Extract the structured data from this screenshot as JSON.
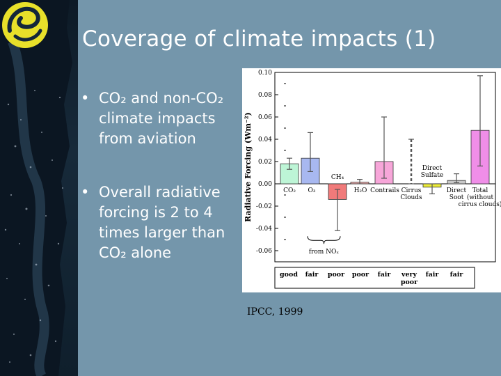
{
  "slide": {
    "title": "Coverage of climate impacts (1)",
    "bullets": [
      {
        "marker": "•",
        "text": "CO₂ and non-CO₂ climate impacts from aviation"
      },
      {
        "marker": "•",
        "text": "Overall radiative forcing is 2 to 4 times larger than CO₂ alone"
      }
    ],
    "source": "IPCC, 1999"
  },
  "colors": {
    "background": "#7496ab",
    "title": "#ffffff",
    "logo_yellow": "#e8e02a",
    "strip_dark": "#13263a"
  },
  "icons": {
    "logo": "yellow-swirl-logo-icon"
  },
  "chart_data": {
    "type": "bar",
    "ylabel": "Radiative Forcing (Wm⁻²)",
    "ylim": [
      -0.07,
      0.1
    ],
    "yticks": [
      "0.10",
      "0.08",
      "0.06",
      "0.04",
      "0.02",
      "0.00",
      "-0.02",
      "-0.04",
      "-0.06"
    ],
    "ytick_values": [
      0.1,
      0.08,
      0.06,
      0.04,
      0.02,
      0.0,
      -0.02,
      -0.04,
      -0.06
    ],
    "bars": [
      {
        "label": "CO₂",
        "value": 0.018,
        "err_low": 0.013,
        "err_high": 0.023,
        "color": "#bdf5d6",
        "style": "solid"
      },
      {
        "label": "O₃",
        "value": 0.023,
        "err_low": 0.011,
        "err_high": 0.046,
        "color": "#a8b8f0",
        "style": "solid"
      },
      {
        "label": "CH₄",
        "value": -0.014,
        "err_low": -0.042,
        "err_high": -0.005,
        "color": "#f07a7a",
        "style": "solid"
      },
      {
        "label": "H₂O",
        "value": 0.0015,
        "err_low": 0.0,
        "err_high": 0.004,
        "color": "#f0b0b0",
        "style": "solid"
      },
      {
        "label": "Contrails",
        "value": 0.02,
        "err_low": 0.005,
        "err_high": 0.06,
        "color": "#f7a6d9",
        "style": "solid"
      },
      {
        "label": "Cirrus Clouds",
        "value": null,
        "err_low": 0.0,
        "err_high": 0.04,
        "color": "#555555",
        "style": "dashed"
      },
      {
        "label": "Direct Sulfate",
        "value": -0.003,
        "err_low": -0.009,
        "err_high": 0.0,
        "color": "#ecec3a",
        "style": "solid"
      },
      {
        "label": "Direct Soot",
        "value": 0.003,
        "err_low": 0.001,
        "err_high": 0.009,
        "color": "#c8c8c8",
        "style": "solid"
      },
      {
        "label": "Total (without cirrus clouds)",
        "value": 0.048,
        "err_low": 0.016,
        "err_high": 0.097,
        "color": "#f08ee8",
        "style": "solid"
      }
    ],
    "annotation": "from NOₓ",
    "confidence": [
      "good",
      "fair",
      "poor",
      "poor",
      "fair",
      "very poor",
      "fair",
      "fair"
    ],
    "grid": false,
    "legend": "none"
  }
}
